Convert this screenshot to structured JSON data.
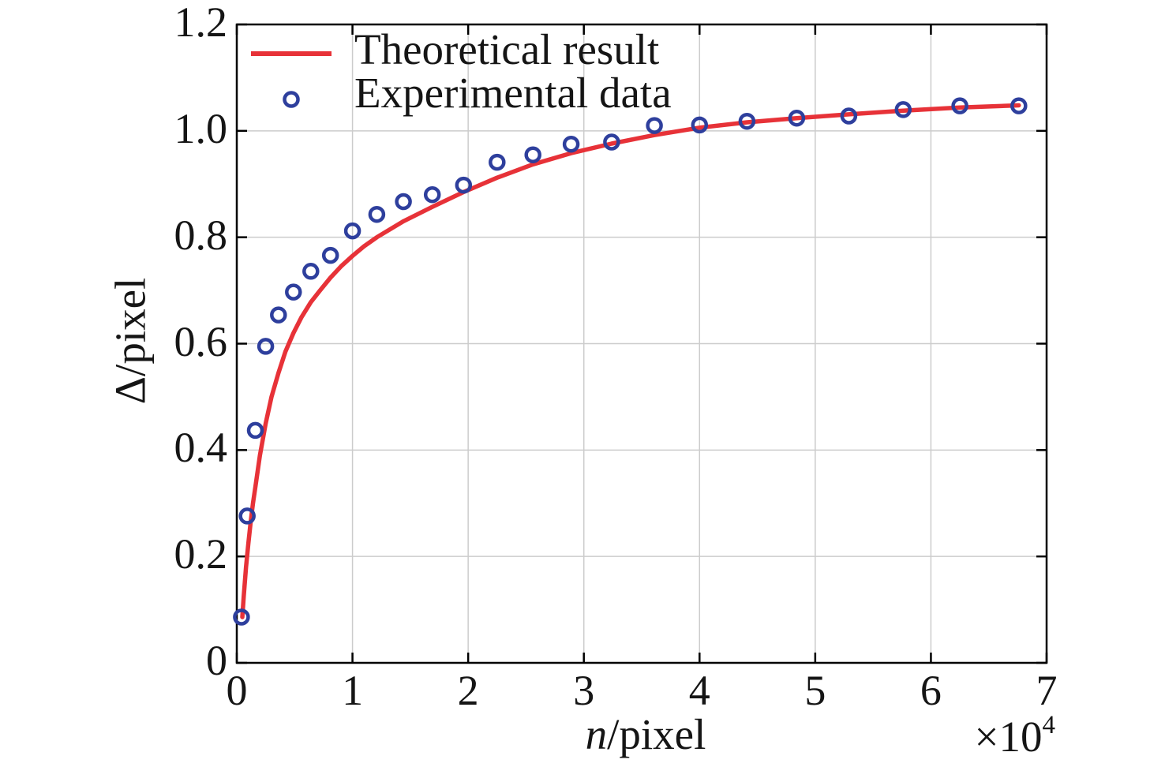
{
  "figure": {
    "background": "#ffffff"
  },
  "chart_data": {
    "type": "line+scatter",
    "title": "",
    "xlabel": "n/pixel",
    "xlabel_italic_part": "n",
    "xlabel_rest_part": "/pixel",
    "ylabel": "Δ/pixel",
    "xlim": [
      0,
      70000
    ],
    "ylim": [
      0,
      1.2
    ],
    "x_tick_values": [
      0,
      10000,
      20000,
      30000,
      40000,
      50000,
      60000,
      70000
    ],
    "x_tick_labels": [
      "0",
      "1",
      "2",
      "3",
      "4",
      "5",
      "6",
      "7"
    ],
    "x_multiplier_base": "×10",
    "x_multiplier_exp": "4",
    "y_tick_values": [
      0,
      0.2,
      0.4,
      0.6,
      0.8,
      1.0,
      1.2
    ],
    "y_tick_labels": [
      "0",
      "0.2",
      "0.4",
      "0.6",
      "0.8",
      "1.0",
      "1.2"
    ],
    "grid": true,
    "grid_color": "#cccccc",
    "axis_color": "#000000",
    "text_color": "#151515",
    "legend_position": "top-left-inside",
    "series": [
      {
        "name": "Theoretical result",
        "type": "line",
        "color": "#e73238",
        "line_width": 5.5,
        "x": [
          480,
          600,
          800,
          1000,
          1200,
          1400,
          1600,
          2000,
          2500,
          3000,
          3600,
          4200,
          4900,
          5600,
          6400,
          7200,
          8100,
          9000,
          10000,
          11000,
          12100,
          14400,
          16900,
          19600,
          22500,
          25600,
          28900,
          32400,
          36100,
          40000,
          44100,
          48400,
          52900,
          57600,
          62500,
          67600
        ],
        "y": [
          0.086,
          0.125,
          0.18,
          0.225,
          0.265,
          0.3,
          0.33,
          0.39,
          0.45,
          0.5,
          0.545,
          0.585,
          0.62,
          0.65,
          0.678,
          0.7,
          0.724,
          0.745,
          0.765,
          0.783,
          0.8,
          0.83,
          0.857,
          0.885,
          0.912,
          0.937,
          0.958,
          0.976,
          0.992,
          1.006,
          1.016,
          1.024,
          1.031,
          1.038,
          1.044,
          1.048
        ]
      },
      {
        "name": "Experimental data",
        "type": "scatter",
        "marker": "circle",
        "color": "#2e3f9d",
        "x": [
          400,
          900,
          1600,
          2500,
          3600,
          4900,
          6400,
          8100,
          10000,
          12100,
          14400,
          16900,
          19600,
          22500,
          25600,
          28900,
          32400,
          36100,
          40000,
          44100,
          48400,
          52900,
          57600,
          62500,
          67600
        ],
        "y": [
          0.086,
          0.276,
          0.437,
          0.595,
          0.654,
          0.697,
          0.736,
          0.766,
          0.812,
          0.843,
          0.867,
          0.88,
          0.898,
          0.941,
          0.955,
          0.975,
          0.979,
          1.01,
          1.011,
          1.018,
          1.024,
          1.028,
          1.04,
          1.047,
          1.047
        ]
      }
    ]
  }
}
